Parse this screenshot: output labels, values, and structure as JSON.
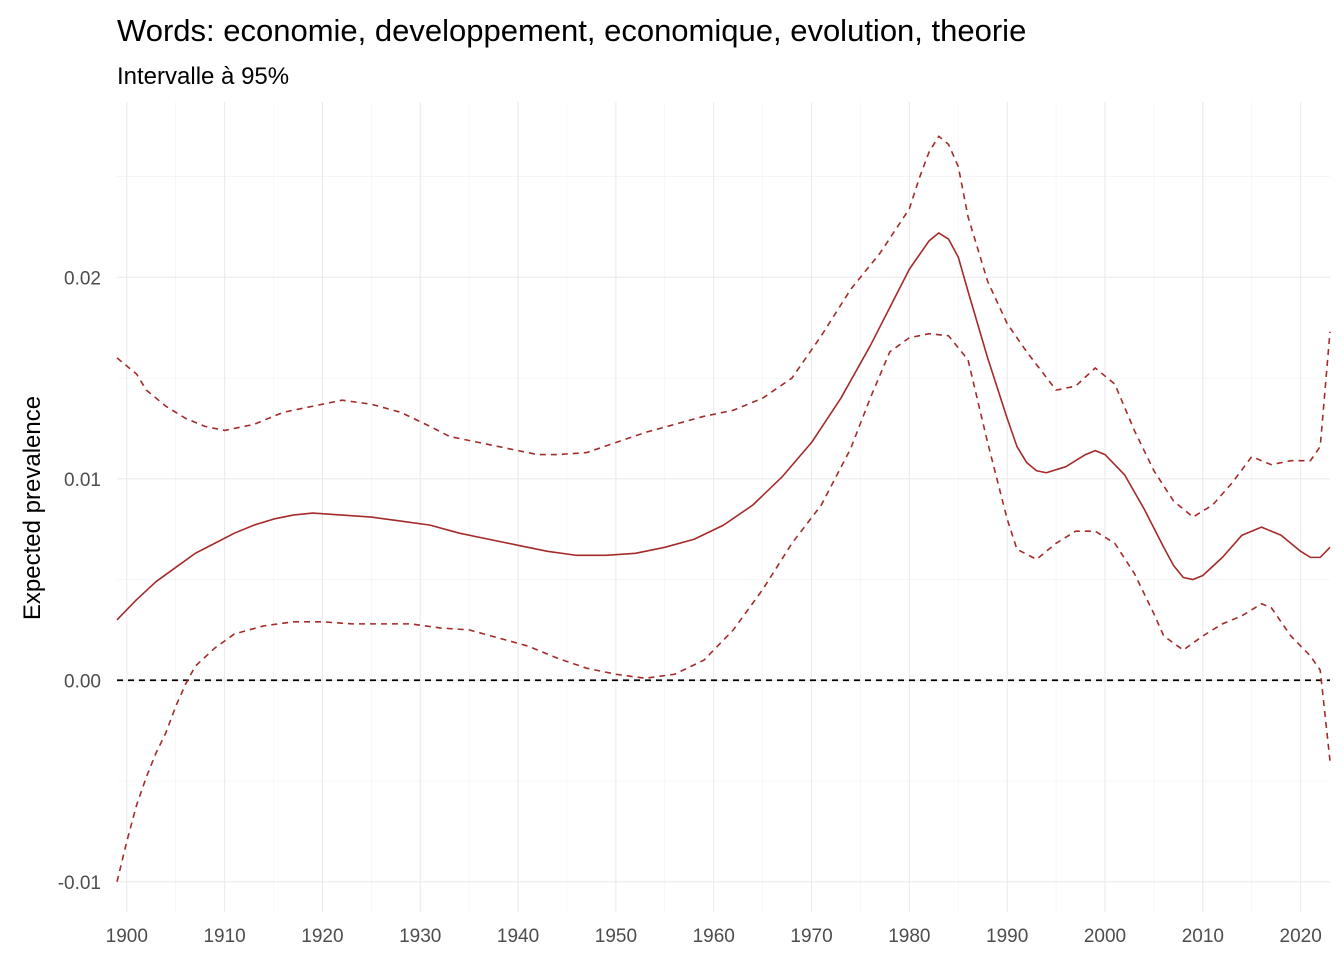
{
  "chart_data": {
    "type": "line",
    "title": "Words: economie, developpement, economique, evolution, theorie",
    "subtitle": "Intervalle à 95%",
    "xlabel": "",
    "ylabel": "Expected prevalence",
    "xlim": [
      1899,
      2023
    ],
    "ylim": [
      -0.0115,
      0.0287
    ],
    "x_ticks": [
      1900,
      1910,
      1920,
      1930,
      1940,
      1950,
      1960,
      1970,
      1980,
      1990,
      2000,
      2010,
      2020
    ],
    "x_tick_labels": [
      "1900",
      "1910",
      "1920",
      "1930",
      "1940",
      "1950",
      "1960",
      "1970",
      "1980",
      "1990",
      "2000",
      "2010",
      "2020"
    ],
    "y_ticks": [
      -0.01,
      0,
      0.01,
      0.02
    ],
    "y_tick_labels": [
      "-0.01",
      "0.00",
      "0.01",
      "0.02"
    ],
    "grid": true,
    "reference_line": {
      "y": 0,
      "style": "dashed",
      "color": "#000000"
    },
    "series": [
      {
        "style": "solid",
        "color": "#a52a2a",
        "points": [
          [
            1899,
            0.003
          ],
          [
            1901,
            0.004
          ],
          [
            1903,
            0.0049
          ],
          [
            1905,
            0.0056
          ],
          [
            1907,
            0.0063
          ],
          [
            1909,
            0.0068
          ],
          [
            1911,
            0.0073
          ],
          [
            1913,
            0.0077
          ],
          [
            1915,
            0.008
          ],
          [
            1917,
            0.0082
          ],
          [
            1919,
            0.0083
          ],
          [
            1922,
            0.0082
          ],
          [
            1925,
            0.0081
          ],
          [
            1928,
            0.0079
          ],
          [
            1931,
            0.0077
          ],
          [
            1934,
            0.0073
          ],
          [
            1937,
            0.007
          ],
          [
            1940,
            0.0067
          ],
          [
            1943,
            0.0064
          ],
          [
            1946,
            0.0062
          ],
          [
            1949,
            0.0062
          ],
          [
            1952,
            0.0063
          ],
          [
            1955,
            0.0066
          ],
          [
            1958,
            0.007
          ],
          [
            1961,
            0.0077
          ],
          [
            1964,
            0.0087
          ],
          [
            1967,
            0.0101
          ],
          [
            1970,
            0.0118
          ],
          [
            1973,
            0.014
          ],
          [
            1976,
            0.0166
          ],
          [
            1978,
            0.0185
          ],
          [
            1980,
            0.0204
          ],
          [
            1982,
            0.0218
          ],
          [
            1983,
            0.0222
          ],
          [
            1984,
            0.0219
          ],
          [
            1985,
            0.021
          ],
          [
            1986,
            0.0193
          ],
          [
            1988,
            0.016
          ],
          [
            1990,
            0.013
          ],
          [
            1991,
            0.0116
          ],
          [
            1992,
            0.0108
          ],
          [
            1993,
            0.0104
          ],
          [
            1994,
            0.0103
          ],
          [
            1996,
            0.0106
          ],
          [
            1998,
            0.0112
          ],
          [
            1999,
            0.0114
          ],
          [
            2000,
            0.0112
          ],
          [
            2002,
            0.0102
          ],
          [
            2004,
            0.0085
          ],
          [
            2006,
            0.0066
          ],
          [
            2007,
            0.0057
          ],
          [
            2008,
            0.0051
          ],
          [
            2009,
            0.005
          ],
          [
            2010,
            0.0052
          ],
          [
            2012,
            0.0061
          ],
          [
            2014,
            0.0072
          ],
          [
            2016,
            0.0076
          ],
          [
            2018,
            0.0072
          ],
          [
            2020,
            0.0064
          ],
          [
            2021,
            0.0061
          ],
          [
            2022,
            0.0061
          ],
          [
            2023,
            0.0066
          ]
        ]
      },
      {
        "style": "dashed",
        "color": "#a52a2a",
        "points": [
          [
            1899,
            0.016
          ],
          [
            1901,
            0.0152
          ],
          [
            1902,
            0.0144
          ],
          [
            1904,
            0.0136
          ],
          [
            1906,
            0.013
          ],
          [
            1908,
            0.0126
          ],
          [
            1910,
            0.0124
          ],
          [
            1913,
            0.0127
          ],
          [
            1916,
            0.0133
          ],
          [
            1919,
            0.0136
          ],
          [
            1922,
            0.0139
          ],
          [
            1925,
            0.0137
          ],
          [
            1928,
            0.0133
          ],
          [
            1931,
            0.0126
          ],
          [
            1933,
            0.0121
          ],
          [
            1936,
            0.0118
          ],
          [
            1939,
            0.0115
          ],
          [
            1942,
            0.0112
          ],
          [
            1944,
            0.0112
          ],
          [
            1947,
            0.0113
          ],
          [
            1950,
            0.0118
          ],
          [
            1953,
            0.0123
          ],
          [
            1956,
            0.0127
          ],
          [
            1959,
            0.0131
          ],
          [
            1962,
            0.0134
          ],
          [
            1965,
            0.014
          ],
          [
            1968,
            0.015
          ],
          [
            1971,
            0.0171
          ],
          [
            1974,
            0.0194
          ],
          [
            1977,
            0.0212
          ],
          [
            1980,
            0.0234
          ],
          [
            1981,
            0.0249
          ],
          [
            1982,
            0.0262
          ],
          [
            1983,
            0.027
          ],
          [
            1984,
            0.0266
          ],
          [
            1985,
            0.0255
          ],
          [
            1986,
            0.023
          ],
          [
            1988,
            0.0198
          ],
          [
            1990,
            0.0177
          ],
          [
            1992,
            0.0163
          ],
          [
            1995,
            0.0144
          ],
          [
            1997,
            0.0146
          ],
          [
            1999,
            0.0155
          ],
          [
            2001,
            0.0147
          ],
          [
            2003,
            0.0124
          ],
          [
            2005,
            0.0104
          ],
          [
            2007,
            0.0089
          ],
          [
            2009,
            0.0081
          ],
          [
            2011,
            0.0087
          ],
          [
            2013,
            0.0098
          ],
          [
            2015,
            0.0111
          ],
          [
            2017,
            0.0107
          ],
          [
            2019,
            0.0109
          ],
          [
            2021,
            0.0109
          ],
          [
            2022,
            0.0116
          ],
          [
            2023,
            0.0173
          ]
        ]
      },
      {
        "style": "dashed",
        "color": "#a52a2a",
        "points": [
          [
            1899,
            -0.01
          ],
          [
            1900,
            -0.008
          ],
          [
            1901,
            -0.0062
          ],
          [
            1902,
            -0.0048
          ],
          [
            1903,
            -0.0036
          ],
          [
            1904,
            -0.0026
          ],
          [
            1905,
            -0.0013
          ],
          [
            1906,
            -0.0002
          ],
          [
            1907,
            0.0007
          ],
          [
            1909,
            0.0016
          ],
          [
            1911,
            0.0023
          ],
          [
            1914,
            0.0027
          ],
          [
            1917,
            0.0029
          ],
          [
            1920,
            0.0029
          ],
          [
            1923,
            0.0028
          ],
          [
            1926,
            0.0028
          ],
          [
            1929,
            0.0028
          ],
          [
            1932,
            0.0026
          ],
          [
            1935,
            0.0025
          ],
          [
            1938,
            0.0021
          ],
          [
            1941,
            0.0017
          ],
          [
            1944,
            0.0011
          ],
          [
            1947,
            0.0006
          ],
          [
            1950,
            0.0003
          ],
          [
            1953,
            0.0001
          ],
          [
            1956,
            0.0003
          ],
          [
            1959,
            0.001
          ],
          [
            1962,
            0.0025
          ],
          [
            1965,
            0.0045
          ],
          [
            1968,
            0.0068
          ],
          [
            1971,
            0.0087
          ],
          [
            1974,
            0.0115
          ],
          [
            1976,
            0.014
          ],
          [
            1978,
            0.0163
          ],
          [
            1980,
            0.017
          ],
          [
            1982,
            0.0172
          ],
          [
            1984,
            0.0171
          ],
          [
            1986,
            0.0159
          ],
          [
            1988,
            0.0118
          ],
          [
            1990,
            0.008
          ],
          [
            1991,
            0.0065
          ],
          [
            1993,
            0.006
          ],
          [
            1995,
            0.0068
          ],
          [
            1997,
            0.0074
          ],
          [
            1999,
            0.0074
          ],
          [
            2001,
            0.0068
          ],
          [
            2003,
            0.0053
          ],
          [
            2005,
            0.0033
          ],
          [
            2006,
            0.0022
          ],
          [
            2008,
            0.0015
          ],
          [
            2010,
            0.0022
          ],
          [
            2012,
            0.0028
          ],
          [
            2014,
            0.0032
          ],
          [
            2016,
            0.0038
          ],
          [
            2017,
            0.0036
          ],
          [
            2019,
            0.0022
          ],
          [
            2021,
            0.0012
          ],
          [
            2022,
            0.0005
          ],
          [
            2023,
            -0.004
          ]
        ]
      }
    ]
  }
}
